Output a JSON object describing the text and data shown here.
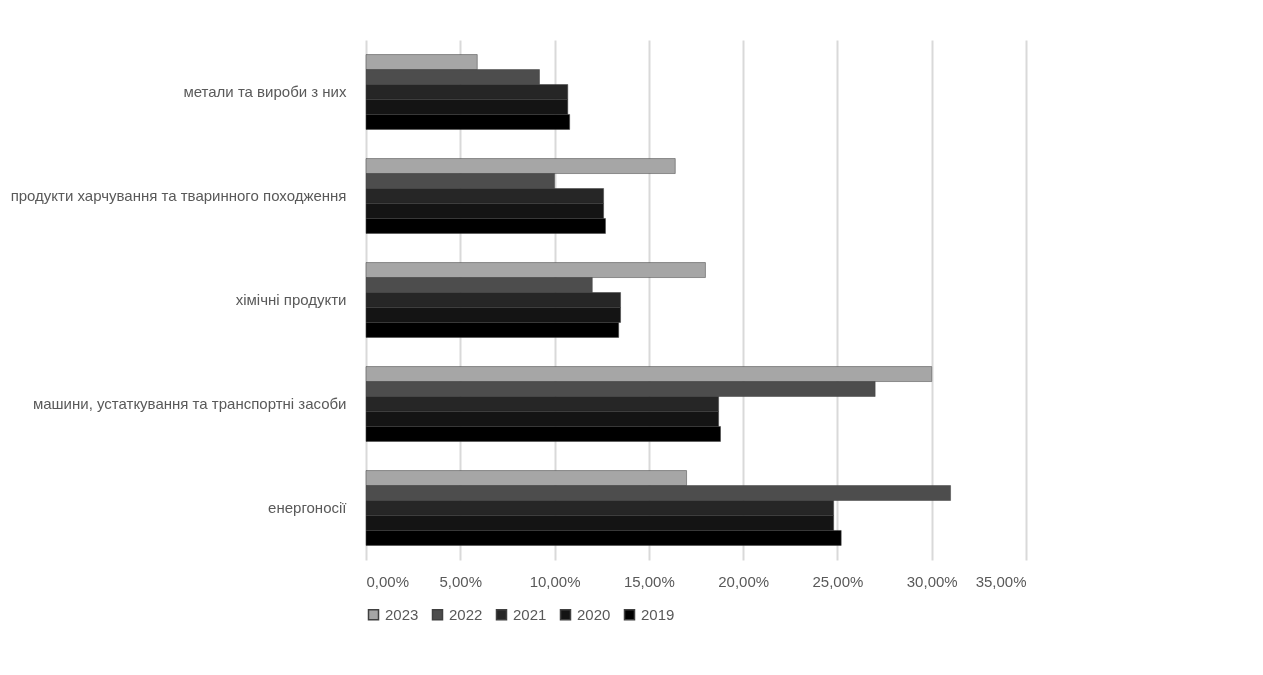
{
  "chart_data": {
    "type": "bar",
    "orientation": "horizontal",
    "categories": [
      "метали та вироби з них",
      "продукти харчування та тваринного походження",
      "хімічні продукти",
      "машини, устаткування та транспортні засоби",
      "енергоносії"
    ],
    "series": [
      {
        "name": "2023",
        "color": "#a6a6a6",
        "values": [
          5.9,
          16.4,
          18.0,
          30.0,
          17.0
        ]
      },
      {
        "name": "2022",
        "color": "#4d4d4d",
        "values": [
          9.2,
          10.0,
          12.0,
          27.0,
          31.0
        ]
      },
      {
        "name": "2021",
        "color": "#262626",
        "values": [
          10.7,
          12.6,
          13.5,
          18.7,
          24.8
        ]
      },
      {
        "name": "2020",
        "color": "#141414",
        "values": [
          10.7,
          12.6,
          13.5,
          18.7,
          24.8
        ]
      },
      {
        "name": "2019",
        "color": "#000000",
        "values": [
          10.8,
          12.7,
          13.4,
          18.8,
          25.2
        ]
      }
    ],
    "xlim": [
      0,
      35
    ],
    "xticks": [
      {
        "value": 0,
        "label": "0,00%"
      },
      {
        "value": 5,
        "label": "5,00%"
      },
      {
        "value": 10,
        "label": "10,00%"
      },
      {
        "value": 15,
        "label": "15,00%"
      },
      {
        "value": 20,
        "label": "20,00%"
      },
      {
        "value": 25,
        "label": "25,00%"
      },
      {
        "value": 30,
        "label": "30,00%"
      },
      {
        "value": 35,
        "label": "35,00%"
      }
    ],
    "grid": "x",
    "legend": "bottom"
  }
}
